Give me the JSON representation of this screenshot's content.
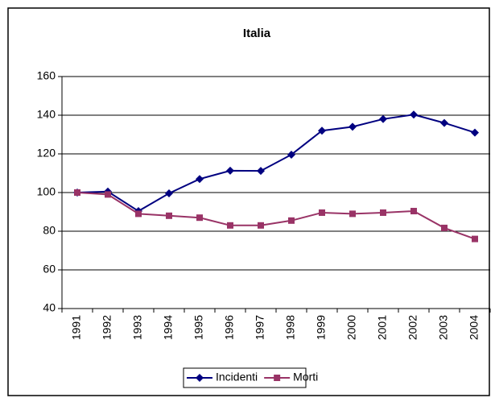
{
  "chart_data": {
    "type": "line",
    "title": "Italia",
    "categories": [
      "1991",
      "1992",
      "1993",
      "1994",
      "1995",
      "1996",
      "1997",
      "1998",
      "1999",
      "2000",
      "2001",
      "2002",
      "2003",
      "2004"
    ],
    "series": [
      {
        "name": "Incidenti",
        "color": "#000080",
        "marker": "diamond",
        "values": [
          100,
          100.5,
          90.4,
          99.6,
          107,
          111.3,
          111.2,
          119.6,
          132,
          134,
          138,
          140.3,
          136,
          131
        ]
      },
      {
        "name": "Morti",
        "color": "#993366",
        "marker": "square",
        "values": [
          100,
          99,
          89,
          88,
          87,
          83,
          83,
          85.5,
          89.6,
          89,
          89.6,
          90.4,
          81.7,
          76
        ]
      }
    ],
    "ylim": [
      40,
      160
    ],
    "yticks": [
      40,
      60,
      80,
      100,
      120,
      140,
      160
    ],
    "grid": true,
    "legend": "bottom"
  }
}
